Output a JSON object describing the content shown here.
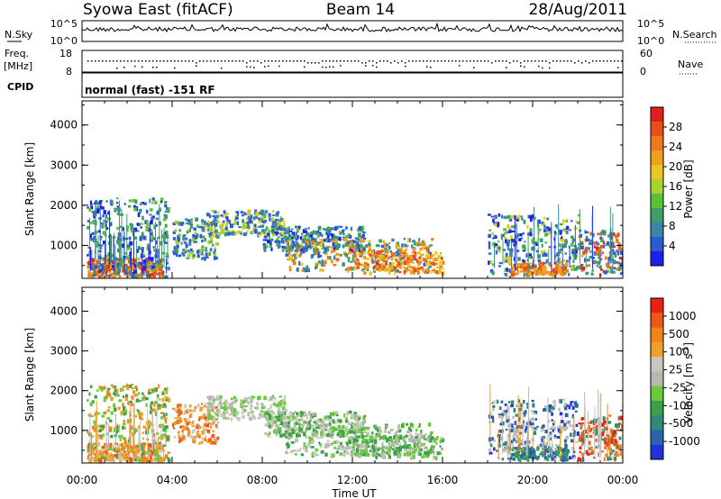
{
  "header": {
    "station": "Syowa East (fitACF)",
    "beam": "Beam 14",
    "date": "28/Aug/2011"
  },
  "status_panels": {
    "noise_left_label": "N.Sky",
    "noise_right_label": "N.Search",
    "noise_ticks": [
      "10^5",
      "10^0"
    ],
    "freq_label": "Freq.",
    "freq_unit": "[MHz]",
    "freq_ticks": [
      "18",
      "8"
    ],
    "nave_label": "Nave",
    "nave_ticks": [
      "60",
      "0"
    ],
    "cpid_label": "CPID",
    "cpid_text": "normal (fast) -151 RF"
  },
  "chart_data": [
    {
      "type": "heatmap",
      "name": "power",
      "ylabel": "Slant Range [km]",
      "y_ticks": [
        1000,
        2000,
        3000,
        4000
      ],
      "ylim": [
        180,
        4600
      ],
      "x_ticks": [
        "00:00",
        "04:00",
        "08:00",
        "12:00",
        "16:00",
        "20:00",
        "00:00"
      ],
      "xlim_hours": [
        0,
        24
      ],
      "colorbar": {
        "label": "Power [dB]",
        "ticks": [
          "4",
          "8",
          "12",
          "16",
          "20",
          "24",
          "28"
        ],
        "colors": [
          "#1a22e8",
          "#2d5bd6",
          "#3a86a8",
          "#3e9e66",
          "#58c23c",
          "#a6d233",
          "#e8c820",
          "#f0a020",
          "#ef7a1d",
          "#e8501a",
          "#e02020"
        ]
      }
    },
    {
      "type": "heatmap",
      "name": "velocity",
      "ylabel": "Slant Range [km]",
      "y_ticks": [
        1000,
        2000,
        3000,
        4000
      ],
      "ylim": [
        180,
        4600
      ],
      "x_ticks": [
        "00:00",
        "04:00",
        "08:00",
        "12:00",
        "16:00",
        "20:00",
        "00:00"
      ],
      "xlabel": "Time UT",
      "xlim_hours": [
        0,
        24
      ],
      "colorbar": {
        "label": "Velocity [m s",
        "label_sup": "-1",
        "label_end": "]",
        "ticks": [
          "1000",
          "500",
          "100",
          "25",
          "-25",
          "-100",
          "-500",
          "-1000"
        ],
        "colors": [
          "#2233d8",
          "#2a63a8",
          "#2f8a7a",
          "#3aa04a",
          "#6cc83c",
          "#b8b8b0",
          "#c8c8c0",
          "#f0a028",
          "#ee8420",
          "#ec5818",
          "#e82018"
        ]
      }
    }
  ]
}
